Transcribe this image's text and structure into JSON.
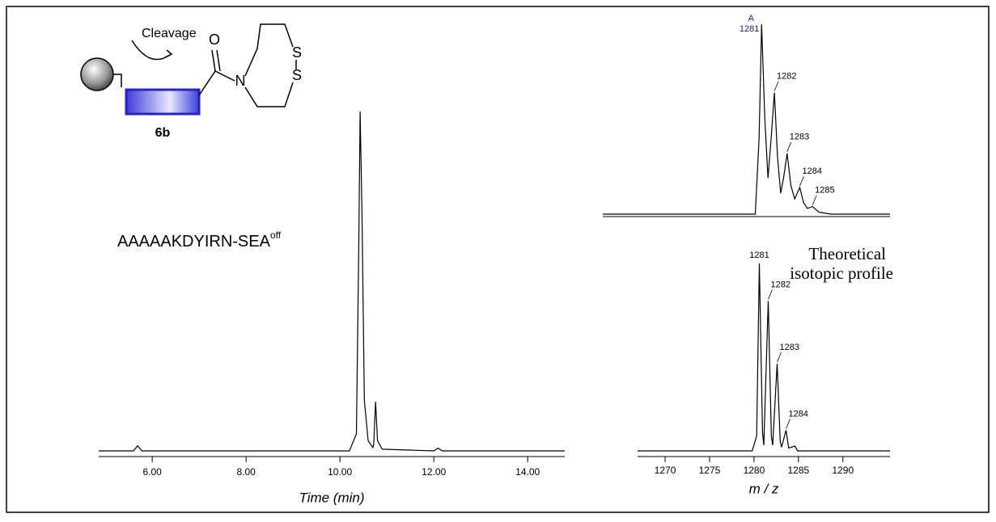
{
  "scheme": {
    "cleavage": "Cleavage",
    "oxygen": "O",
    "nitrogen": "N",
    "sulfur_top": "S",
    "sulfur_bottom": "S",
    "compound": "6b"
  },
  "chart_data": [
    {
      "type": "line",
      "xlabel": "Time (min)",
      "annotation": {
        "text": "AAAAAKDYIRN-SEA",
        "superscript": "off"
      },
      "x": [
        4.86,
        5.6,
        5.69,
        5.78,
        10.2,
        10.35,
        10.4,
        10.43,
        10.47,
        10.52,
        10.6,
        10.7,
        10.72,
        10.76,
        10.8,
        10.9,
        12.0,
        12.09,
        12.18,
        14.79
      ],
      "values": [
        0,
        0,
        1.5,
        0,
        0,
        5,
        60,
        100,
        70,
        15,
        3,
        1,
        2,
        14.5,
        3,
        0.5,
        0,
        0.8,
        0,
        0
      ],
      "color": "#000000",
      "xlim": [
        4.86,
        14.79
      ],
      "ylim": [
        0,
        100
      ],
      "xticks": [
        {
          "value": 6,
          "label": "6.00"
        },
        {
          "value": 8,
          "label": "8.00"
        },
        {
          "value": 10,
          "label": "10.00"
        },
        {
          "value": 12,
          "label": "12.00"
        },
        {
          "value": 14,
          "label": "14.00"
        }
      ]
    },
    {
      "type": "line",
      "x": [
        1268.5,
        1280.5,
        1280.8,
        1281.0,
        1281.25,
        1281.5,
        1281.75,
        1282.0,
        1282.25,
        1282.5,
        1282.75,
        1283.0,
        1283.3,
        1283.6,
        1284.0,
        1284.3,
        1284.6,
        1285.0,
        1285.5,
        1286.5,
        1291.1
      ],
      "values": [
        0,
        0,
        40,
        100,
        50,
        19,
        40,
        64,
        30,
        11,
        20,
        32,
        15,
        8,
        14,
        6,
        3,
        4,
        1,
        0,
        0
      ],
      "color": "#000000",
      "xlim": [
        1268.5,
        1291.1
      ],
      "ylim": [
        0,
        100
      ],
      "peak_labels": [
        {
          "x": 1281,
          "y": 100,
          "label": "1281",
          "tag": "A",
          "color": "#1a1a9c"
        },
        {
          "x": 1282,
          "y": 64,
          "label": "1282"
        },
        {
          "x": 1283,
          "y": 32,
          "label": "1283"
        },
        {
          "x": 1284,
          "y": 14,
          "label": "1284"
        },
        {
          "x": 1285,
          "y": 4,
          "label": "1285"
        }
      ]
    },
    {
      "type": "line",
      "xlabel": "m / z",
      "annotation": {
        "lines": [
          "Theoretical",
          "isotopic profile"
        ]
      },
      "x": [
        1266.9,
        1279.8,
        1280.3,
        1280.6,
        1280.95,
        1281.1,
        1281.6,
        1281.95,
        1282.1,
        1282.6,
        1282.95,
        1283.1,
        1283.6,
        1283.9,
        1284.6,
        1284.9,
        1295.3
      ],
      "values": [
        0,
        0,
        8,
        100,
        10,
        3,
        80,
        8,
        3,
        46.5,
        5,
        2,
        11,
        1.5,
        2.6,
        0,
        0
      ],
      "color": "#000000",
      "xlim": [
        1266.9,
        1295.3
      ],
      "ylim": [
        0,
        100
      ],
      "xticks": [
        1270,
        1275,
        1280,
        1285,
        1290
      ],
      "peak_labels": [
        {
          "x": 1280.6,
          "y": 100,
          "label": "1281"
        },
        {
          "x": 1281.6,
          "y": 80,
          "label": "1282"
        },
        {
          "x": 1282.6,
          "y": 46.5,
          "label": "1283"
        },
        {
          "x": 1283.6,
          "y": 11,
          "label": "1284"
        }
      ]
    }
  ]
}
